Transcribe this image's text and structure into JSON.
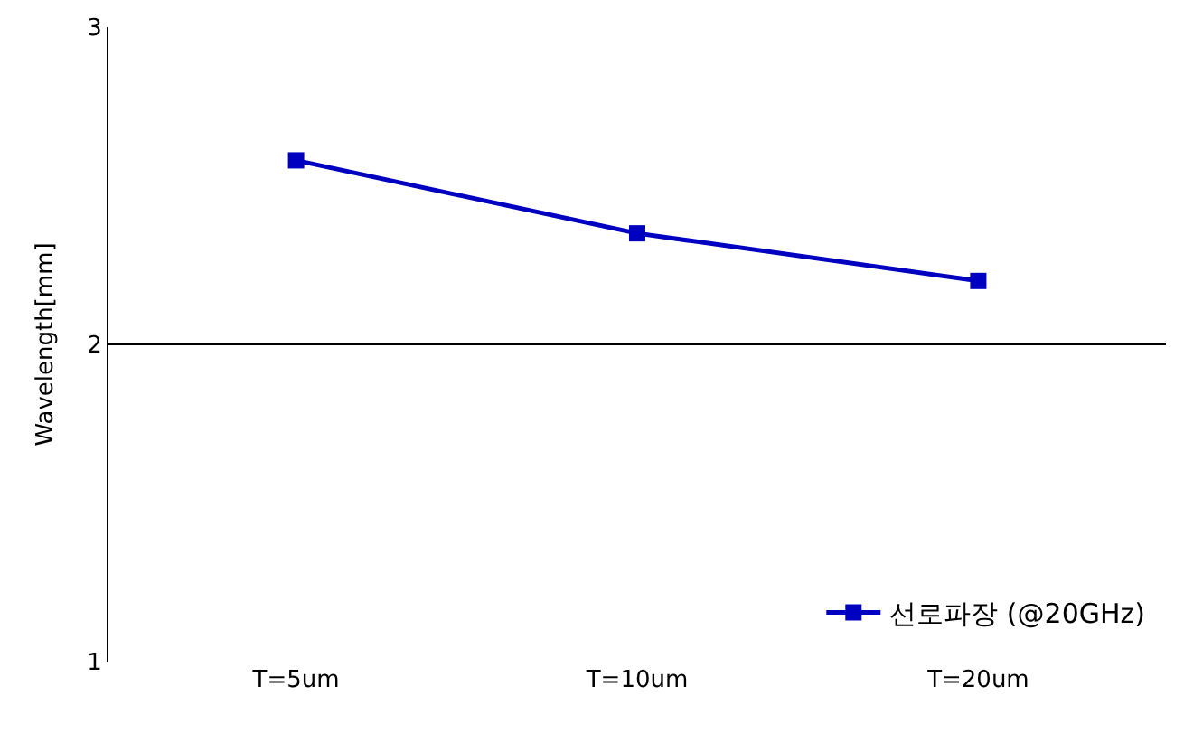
{
  "chart_data": {
    "type": "line",
    "ylabel": "Wavelength[mm]",
    "categories": [
      "T=5um",
      "T=10um",
      "T=20um"
    ],
    "series": [
      {
        "name": "선로파장 (@20GHz)",
        "color": "#0000c0",
        "values": [
          2.58,
          2.35,
          2.2
        ]
      }
    ],
    "ylim": [
      1,
      3
    ],
    "yticks": [
      1,
      2,
      3
    ],
    "grid": "y",
    "legend": "bottom right",
    "marker": "square",
    "line_style": "solid"
  }
}
